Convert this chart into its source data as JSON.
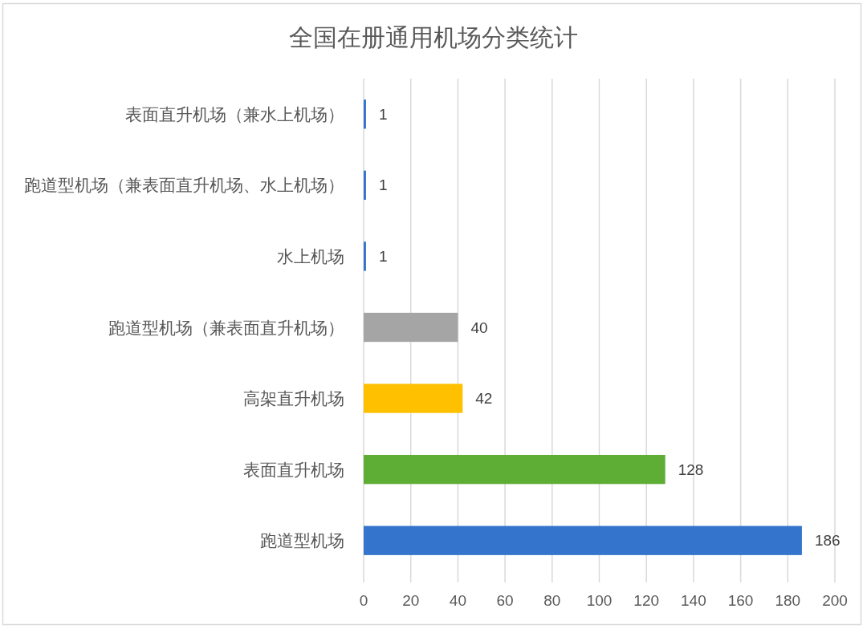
{
  "chart_data": {
    "type": "bar",
    "orientation": "horizontal",
    "title": "全国在册通用机场分类统计",
    "categories": [
      "表面直升机场（兼水上机场）",
      "跑道型机场（兼表面直升机场、水上机场）",
      "水上机场",
      "跑道型机场（兼表面直升机场）",
      "高架直升机场",
      "表面直升机场",
      "跑道型机场"
    ],
    "values": [
      1,
      1,
      1,
      40,
      42,
      128,
      186
    ],
    "colors": [
      "#3474cc",
      "#3474cc",
      "#3474cc",
      "#a5a5a5",
      "#ffc000",
      "#5ead35",
      "#3474cc"
    ],
    "xlim": [
      0,
      200
    ],
    "xticks": [
      0,
      20,
      40,
      60,
      80,
      100,
      120,
      140,
      160,
      180,
      200
    ],
    "grid": "x",
    "data_labels": true
  }
}
